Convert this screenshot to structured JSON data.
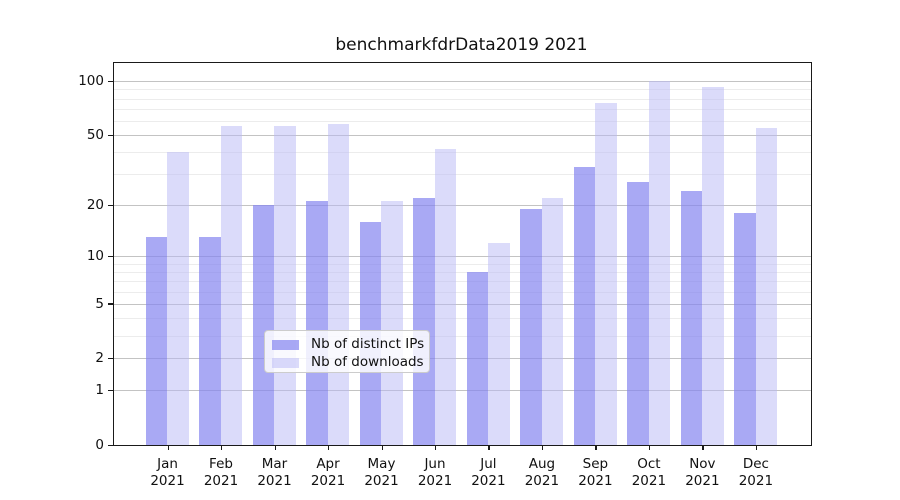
{
  "title": "benchmarkfdrData2019 2021",
  "chart_data": {
    "type": "bar",
    "title": "benchmarkfdrData2019 2021",
    "categories": [
      "Jan 2021",
      "Feb 2021",
      "Mar 2021",
      "Apr 2021",
      "May 2021",
      "Jun 2021",
      "Jul 2021",
      "Aug 2021",
      "Sep 2021",
      "Oct 2021",
      "Nov 2021",
      "Dec 2021"
    ],
    "months": [
      "Jan",
      "Feb",
      "Mar",
      "Apr",
      "May",
      "Jun",
      "Jul",
      "Aug",
      "Sep",
      "Oct",
      "Nov",
      "Dec"
    ],
    "year_label": "2021",
    "series": [
      {
        "name": "Nb of distinct IPs",
        "color": "rgba(133,133,240,0.70)",
        "values": [
          13,
          13,
          20,
          21,
          16,
          22,
          8,
          19,
          33,
          27,
          24,
          18
        ]
      },
      {
        "name": "Nb of downloads",
        "color": "rgba(184,184,245,0.50)",
        "values": [
          40,
          56,
          56,
          58,
          21,
          42,
          12,
          22,
          76,
          100,
          93,
          55
        ]
      }
    ],
    "y_scale": "log10(1+value)",
    "y_ticks": [
      0,
      1,
      2,
      5,
      10,
      20,
      50,
      100
    ],
    "y_minor_gridlines": [
      3,
      4,
      6,
      7,
      8,
      9,
      30,
      40,
      60,
      70,
      80,
      90
    ],
    "ylim": [
      0,
      125
    ],
    "xlabel": "",
    "ylabel": "",
    "grid": true,
    "legend_position": "lower center",
    "colors": {
      "axis": "#1a1a1a",
      "major_grid": "#c3c3c3",
      "minor_grid": "#ececec",
      "background": "#ffffff"
    }
  }
}
